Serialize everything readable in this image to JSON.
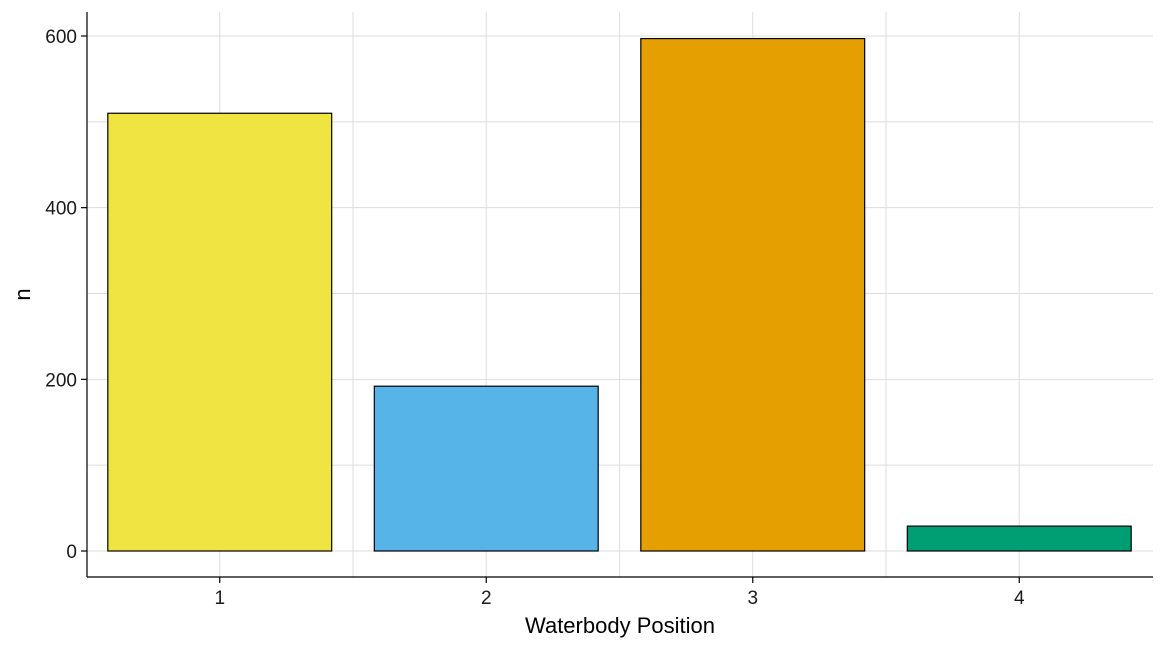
{
  "chart_data": {
    "type": "bar",
    "title": "",
    "xlabel": "Waterbody Position",
    "ylabel": "n",
    "categories": [
      "1",
      "2",
      "3",
      "4"
    ],
    "values": [
      510,
      192,
      597,
      29
    ],
    "colors": [
      "#F0E442",
      "#56B4E9",
      "#E69F00",
      "#009E73"
    ],
    "ylim": [
      -30,
      630
    ],
    "yticks": [
      0,
      200,
      400,
      600
    ],
    "ytick_labels": [
      "0",
      "200",
      "400",
      "600"
    ],
    "y_minor_gridlines": [
      100,
      300,
      500
    ],
    "grid": true,
    "legend": "none"
  }
}
